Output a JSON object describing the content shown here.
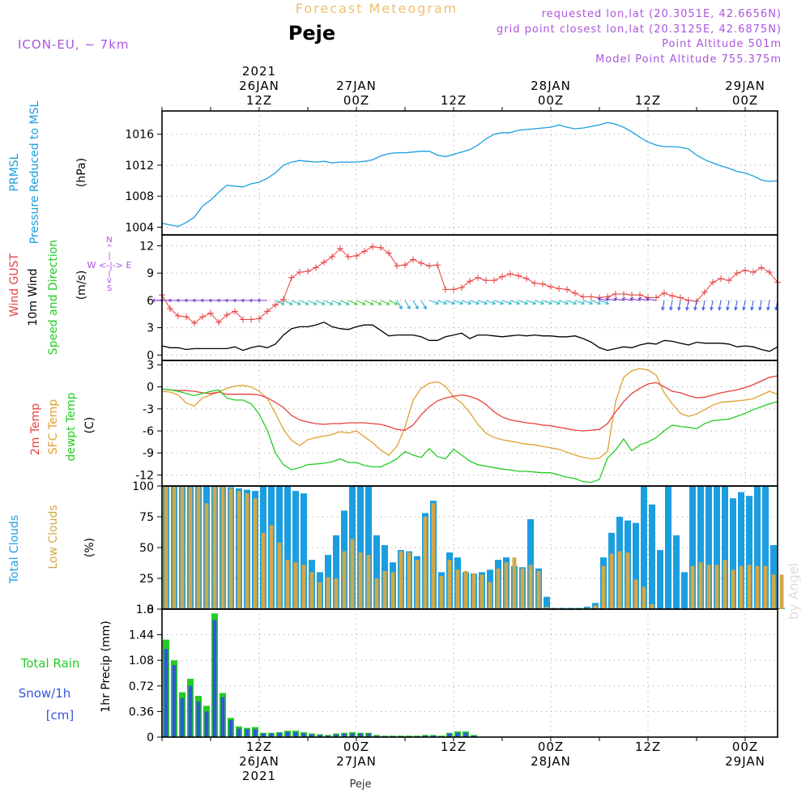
{
  "header": {
    "title": "Forecast Meteogram",
    "place": "Peje",
    "model": "ICON-EU, ~ 7km",
    "requested": "requested lon,lat (20.3051E, 42.6656N)",
    "grid_point": "grid point closest lon,lat (20.3125E, 42.6875N)",
    "point_altitude": "Point Altitude 501m",
    "model_altitude": "Model Point Altitude 755.375m",
    "watermark": "by Angel",
    "footer_place": "Peje"
  },
  "colors": {
    "pressure": "#1a9ee0",
    "gust": "#e84040",
    "wind": "#000000",
    "t2m": "#e84040",
    "sfc": "#e0a030",
    "dewpt": "#22cc22",
    "total_cloud": "#1a9ee0",
    "low_cloud": "#d0a848",
    "rain": "#22cc22",
    "snow": "#3355dd",
    "title": "#f0c070",
    "info": "#aa55dd"
  },
  "time_axis": {
    "top_labels": [
      {
        "t": 12,
        "lines": [
          "2021",
          "26JAN",
          "12Z"
        ]
      },
      {
        "t": 24,
        "lines": [
          "27JAN",
          "00Z"
        ]
      },
      {
        "t": 36,
        "lines": [
          "12Z"
        ]
      },
      {
        "t": 48,
        "lines": [
          "28JAN",
          "00Z"
        ]
      },
      {
        "t": 60,
        "lines": [
          "12Z"
        ]
      },
      {
        "t": 72,
        "lines": [
          "29JAN",
          "00Z"
        ]
      }
    ],
    "bottom_labels": [
      {
        "t": 12,
        "lines": [
          "12Z",
          "26JAN",
          "2021"
        ]
      },
      {
        "t": 24,
        "lines": [
          "00Z",
          "27JAN"
        ]
      },
      {
        "t": 36,
        "lines": [
          "12Z"
        ]
      },
      {
        "t": 48,
        "lines": [
          "00Z",
          "28JAN"
        ]
      },
      {
        "t": 60,
        "lines": [
          "12Z"
        ]
      },
      {
        "t": 72,
        "lines": [
          "00Z",
          "29JAN"
        ]
      }
    ]
  },
  "chart_data": [
    {
      "type": "line",
      "name": "pressure",
      "ylabels": [
        "PRMSL",
        "Pressure Reduced to MSL",
        "(hPa)"
      ],
      "ylim": [
        1003,
        1019
      ],
      "yticks": [
        1004,
        1008,
        1012,
        1016
      ],
      "x": [
        0,
        1,
        2,
        3,
        4,
        5,
        6,
        7,
        8,
        9,
        10,
        11,
        12,
        13,
        14,
        15,
        16,
        17,
        18,
        19,
        20,
        21,
        22,
        23,
        24,
        25,
        26,
        27,
        28,
        29,
        30,
        31,
        32,
        33,
        34,
        35,
        36,
        37,
        38,
        39,
        40,
        41,
        42,
        43,
        44,
        45,
        46,
        47,
        48,
        49,
        50,
        51,
        52,
        53,
        54,
        55,
        56,
        57,
        58,
        59,
        60,
        61,
        62,
        63,
        64,
        65,
        66,
        67,
        68,
        69,
        70,
        71,
        72,
        73,
        74,
        75,
        76
      ],
      "values": [
        1004.5,
        1004.3,
        1004.1,
        1004.6,
        1005.3,
        1006.7,
        1007.5,
        1008.5,
        1009.4,
        1009.3,
        1009.2,
        1009.6,
        1009.8,
        1010.3,
        1011.0,
        1012.0,
        1012.4,
        1012.6,
        1012.5,
        1012.4,
        1012.5,
        1012.3,
        1012.4,
        1012.4,
        1012.4,
        1012.5,
        1012.7,
        1013.2,
        1013.5,
        1013.6,
        1013.6,
        1013.7,
        1013.8,
        1013.8,
        1013.3,
        1013.1,
        1013.4,
        1013.7,
        1014.0,
        1014.6,
        1015.4,
        1016.0,
        1016.2,
        1016.2,
        1016.5,
        1016.6,
        1016.7,
        1016.8,
        1016.9,
        1017.2,
        1016.9,
        1016.7,
        1016.8,
        1017.0,
        1017.2,
        1017.5,
        1017.3,
        1016.9,
        1016.3,
        1015.6,
        1015.0,
        1014.6,
        1014.4,
        1014.4,
        1014.3,
        1014.1,
        1013.3,
        1012.7,
        1012.3,
        1011.9,
        1011.6,
        1011.2,
        1011.0,
        1010.6,
        1010.1,
        1009.9,
        1010.0
      ]
    },
    {
      "type": "line",
      "name": "wind",
      "ylabels": [
        "Wind GUST",
        "10m Wind",
        "Speed and Direction",
        "(m/s)"
      ],
      "compass": [
        "N",
        "^",
        "|",
        "W <-|-> E",
        "|",
        "v",
        "S"
      ],
      "ylim": [
        -0.6,
        13.2
      ],
      "yticks": [
        0,
        3,
        6,
        9,
        12
      ],
      "x": [
        0,
        1,
        2,
        3,
        4,
        5,
        6,
        7,
        8,
        9,
        10,
        11,
        12,
        13,
        14,
        15,
        16,
        17,
        18,
        19,
        20,
        21,
        22,
        23,
        24,
        25,
        26,
        27,
        28,
        29,
        30,
        31,
        32,
        33,
        34,
        35,
        36,
        37,
        38,
        39,
        40,
        41,
        42,
        43,
        44,
        45,
        46,
        47,
        48,
        49,
        50,
        51,
        52,
        53,
        54,
        55,
        56,
        57,
        58,
        59,
        60,
        61,
        62,
        63,
        64,
        65,
        66,
        67,
        68,
        69,
        70,
        71,
        72,
        73,
        74,
        75,
        76
      ],
      "gust": [
        6.6,
        5.1,
        4.3,
        4.2,
        3.5,
        4.2,
        4.6,
        3.6,
        4.4,
        4.8,
        3.9,
        3.9,
        4.0,
        4.8,
        5.5,
        6.1,
        8.5,
        9.1,
        9.2,
        9.6,
        10.2,
        10.8,
        11.7,
        10.8,
        10.9,
        11.4,
        11.9,
        11.8,
        11.2,
        9.8,
        9.9,
        10.5,
        10.1,
        9.8,
        9.9,
        7.2,
        7.2,
        7.4,
        8.1,
        8.5,
        8.2,
        8.2,
        8.6,
        8.9,
        8.7,
        8.4,
        7.9,
        7.8,
        7.5,
        7.3,
        7.2,
        6.8,
        6.4,
        6.4,
        6.3,
        6.4,
        6.7,
        6.7,
        6.6,
        6.6,
        6.3,
        6.3,
        6.8,
        6.5,
        6.3,
        6.0,
        5.9,
        6.9,
        8.0,
        8.4,
        8.2,
        9.0,
        9.3,
        9.1,
        9.6,
        9.1,
        8.0
      ],
      "speed": [
        1.0,
        0.8,
        0.8,
        0.6,
        0.7,
        0.7,
        0.7,
        0.7,
        0.7,
        0.9,
        0.5,
        0.8,
        1.0,
        0.8,
        1.2,
        2.2,
        2.9,
        3.1,
        3.1,
        3.3,
        3.6,
        3.1,
        2.9,
        2.8,
        3.1,
        3.3,
        3.3,
        2.7,
        2.1,
        2.2,
        2.2,
        2.2,
        2.0,
        1.6,
        1.6,
        2.0,
        2.2,
        2.4,
        1.8,
        2.2,
        2.2,
        2.1,
        2.0,
        2.1,
        2.2,
        2.1,
        2.2,
        2.1,
        2.1,
        2.0,
        2.0,
        2.1,
        1.8,
        1.4,
        0.8,
        0.5,
        0.7,
        0.9,
        0.8,
        1.1,
        1.3,
        1.2,
        1.6,
        1.5,
        1.3,
        1.1,
        1.4,
        1.3,
        1.3,
        1.3,
        1.2,
        0.9,
        1.0,
        0.9,
        0.6,
        0.4,
        0.9
      ]
    },
    {
      "type": "line",
      "name": "temperature",
      "ylabels": [
        "2m Temp",
        "SFC Temp",
        "dewpt Temp",
        "(C)"
      ],
      "ylim": [
        -13.5,
        3.6
      ],
      "yticks": [
        3,
        0,
        -3,
        -6,
        -9,
        -12
      ],
      "x": [
        0,
        1,
        2,
        3,
        4,
        5,
        6,
        7,
        8,
        9,
        10,
        11,
        12,
        13,
        14,
        15,
        16,
        17,
        18,
        19,
        20,
        21,
        22,
        23,
        24,
        25,
        26,
        27,
        28,
        29,
        30,
        31,
        32,
        33,
        34,
        35,
        36,
        37,
        38,
        39,
        40,
        41,
        42,
        43,
        44,
        45,
        46,
        47,
        48,
        49,
        50,
        51,
        52,
        53,
        54,
        55,
        56,
        57,
        58,
        59,
        60,
        61,
        62,
        63,
        64,
        65,
        66,
        67,
        68,
        69,
        70,
        71,
        72,
        73,
        74,
        75,
        76
      ],
      "t2m": [
        -0.3,
        -0.4,
        -0.5,
        -0.5,
        -0.6,
        -0.8,
        -0.9,
        -0.7,
        -1.0,
        -1.0,
        -1.0,
        -1.0,
        -1.1,
        -1.5,
        -2.1,
        -2.8,
        -3.9,
        -4.5,
        -4.8,
        -5.0,
        -5.1,
        -5.0,
        -5.0,
        -4.9,
        -4.9,
        -4.9,
        -5.0,
        -5.1,
        -5.4,
        -5.8,
        -5.9,
        -5.2,
        -3.8,
        -2.7,
        -1.9,
        -1.5,
        -1.3,
        -1.1,
        -1.3,
        -1.7,
        -2.4,
        -3.4,
        -4.1,
        -4.5,
        -4.7,
        -4.9,
        -5.0,
        -5.2,
        -5.3,
        -5.5,
        -5.7,
        -5.9,
        -6.0,
        -5.9,
        -5.8,
        -5.0,
        -3.4,
        -2.0,
        -0.9,
        -0.2,
        0.4,
        0.6,
        0.0,
        -0.6,
        -0.8,
        -1.2,
        -1.5,
        -1.4,
        -1.1,
        -0.8,
        -0.6,
        -0.4,
        -0.1,
        0.3,
        0.8,
        1.3,
        1.5
      ],
      "sfc": [
        -0.6,
        -0.7,
        -1.1,
        -2.2,
        -2.6,
        -1.5,
        -1.1,
        -0.7,
        -0.2,
        0.1,
        0.2,
        0.0,
        -0.6,
        -1.6,
        -3.6,
        -5.8,
        -7.3,
        -8.0,
        -7.2,
        -6.9,
        -6.7,
        -6.5,
        -6.1,
        -6.3,
        -6.0,
        -6.8,
        -7.6,
        -8.6,
        -9.3,
        -8.1,
        -5.5,
        -1.8,
        -0.2,
        0.5,
        0.7,
        0.1,
        -1.4,
        -2.2,
        -3.5,
        -5.1,
        -6.3,
        -6.9,
        -7.2,
        -7.4,
        -7.6,
        -7.8,
        -7.9,
        -8.1,
        -8.3,
        -8.5,
        -8.9,
        -9.3,
        -9.6,
        -9.8,
        -9.7,
        -8.8,
        -2.0,
        1.3,
        2.2,
        2.5,
        2.3,
        1.6,
        -0.8,
        -2.3,
        -3.6,
        -4.0,
        -3.7,
        -3.1,
        -2.5,
        -2.1,
        -2.0,
        -1.9,
        -1.8,
        -1.6,
        -1.1,
        -0.6,
        -1.0
      ],
      "dewpt": [
        -0.3,
        -0.4,
        -0.6,
        -0.9,
        -1.2,
        -0.9,
        -0.6,
        -0.4,
        -1.5,
        -1.8,
        -1.8,
        -2.3,
        -3.7,
        -5.9,
        -9.0,
        -10.6,
        -11.3,
        -11.0,
        -10.6,
        -10.5,
        -10.4,
        -10.2,
        -9.8,
        -10.3,
        -10.3,
        -10.7,
        -10.9,
        -10.9,
        -10.4,
        -9.8,
        -8.8,
        -9.3,
        -9.6,
        -8.4,
        -9.5,
        -9.8,
        -8.5,
        -9.3,
        -10.1,
        -10.6,
        -10.8,
        -11.0,
        -11.2,
        -11.3,
        -11.5,
        -11.5,
        -11.6,
        -11.7,
        -11.7,
        -12.0,
        -12.3,
        -12.5,
        -12.9,
        -13.0,
        -12.6,
        -9.7,
        -8.6,
        -7.1,
        -8.7,
        -7.9,
        -7.5,
        -6.9,
        -6.0,
        -5.2,
        -5.4,
        -5.5,
        -5.7,
        -5.0,
        -4.6,
        -4.5,
        -4.4,
        -4.0,
        -3.6,
        -3.1,
        -2.7,
        -2.3,
        -2.0
      ]
    },
    {
      "type": "bar",
      "name": "clouds",
      "ylabels": [
        "Total Clouds",
        "Low Clouds",
        "(%)"
      ],
      "ylim": [
        0,
        100
      ],
      "yticks": [
        0,
        25,
        50,
        75,
        100
      ],
      "x": [
        0,
        1,
        2,
        3,
        4,
        5,
        6,
        7,
        8,
        9,
        10,
        11,
        12,
        13,
        14,
        15,
        16,
        17,
        18,
        19,
        20,
        21,
        22,
        23,
        24,
        25,
        26,
        27,
        28,
        29,
        30,
        31,
        32,
        33,
        34,
        35,
        36,
        37,
        38,
        39,
        40,
        41,
        42,
        43,
        44,
        45,
        46,
        47,
        48,
        49,
        50,
        51,
        52,
        53,
        54,
        55,
        56,
        57,
        58,
        59,
        60,
        61,
        62,
        63,
        64,
        65,
        66,
        67,
        68,
        69,
        70,
        71,
        72,
        73,
        74,
        75,
        76
      ],
      "total": [
        100,
        100,
        100,
        100,
        100,
        100,
        100,
        100,
        99,
        98,
        97,
        96,
        100,
        100,
        100,
        100,
        96,
        94,
        40,
        30,
        44,
        60,
        80,
        100,
        100,
        100,
        60,
        52,
        38,
        48,
        47,
        43,
        78,
        88,
        30,
        46,
        42,
        30,
        29,
        30,
        32,
        40,
        42,
        35,
        34,
        73,
        33,
        10,
        1,
        1,
        1,
        1,
        2,
        5,
        42,
        62,
        75,
        72,
        70,
        100,
        85,
        48,
        100,
        60,
        30,
        100,
        100,
        100,
        100,
        100,
        90,
        95,
        92,
        100,
        100,
        52,
        1
      ],
      "low": [
        100,
        100,
        100,
        99,
        100,
        86,
        100,
        100,
        98,
        96,
        94,
        90,
        62,
        68,
        54,
        40,
        38,
        36,
        30,
        22,
        26,
        25,
        47,
        57,
        46,
        44,
        25,
        31,
        30,
        47,
        46,
        40,
        75,
        86,
        27,
        40,
        32,
        31,
        29,
        28,
        22,
        33,
        38,
        42,
        33,
        36,
        31,
        2,
        0,
        0,
        0,
        0,
        1,
        3,
        35,
        45,
        47,
        46,
        24,
        18,
        4,
        0,
        0,
        0,
        0,
        35,
        38,
        36,
        36,
        40,
        32,
        35,
        36,
        35,
        35,
        28,
        28
      ]
    },
    {
      "type": "bar",
      "name": "precipitation",
      "ylabels": [
        "Total Rain",
        "Snow/1h",
        "[cm]",
        "1hr Precip (mm)"
      ],
      "ylim": [
        0,
        1.8
      ],
      "yticks": [
        0,
        0.36,
        0.72,
        1.08,
        1.44,
        1.8
      ],
      "ytick_labels": [
        "0",
        "0.36",
        "0.72",
        "1.08",
        "1.44",
        "1.8"
      ],
      "x": [
        0,
        1,
        2,
        3,
        4,
        5,
        6,
        7,
        8,
        9,
        10,
        11,
        12,
        13,
        14,
        15,
        16,
        17,
        18,
        19,
        20,
        21,
        22,
        23,
        24,
        25,
        26,
        27,
        28,
        29,
        30,
        31,
        32,
        33,
        34,
        35,
        36,
        37,
        38,
        39,
        40,
        41,
        42,
        43,
        44,
        45,
        46,
        47,
        48,
        49,
        50,
        51,
        52,
        53,
        54,
        55,
        56,
        57,
        58,
        59,
        60,
        61,
        62,
        63,
        64,
        65,
        66,
        67,
        68,
        69,
        70,
        71,
        72,
        73,
        74,
        75,
        76
      ],
      "rain": [
        1.37,
        1.08,
        0.63,
        0.82,
        0.58,
        0.44,
        1.74,
        0.62,
        0.27,
        0.15,
        0.13,
        0.14,
        0.06,
        0.06,
        0.07,
        0.09,
        0.09,
        0.07,
        0.05,
        0.04,
        0.03,
        0.05,
        0.06,
        0.07,
        0.06,
        0.06,
        0.03,
        0.02,
        0.02,
        0.02,
        0.02,
        0.02,
        0.03,
        0.03,
        0.02,
        0.06,
        0.08,
        0.08,
        0.03,
        0,
        0,
        0,
        0,
        0,
        0,
        0,
        0,
        0,
        0,
        0,
        0,
        0,
        0,
        0,
        0,
        0,
        0,
        0,
        0,
        0,
        0,
        0,
        0,
        0,
        0,
        0,
        0,
        0,
        0,
        0,
        0,
        0,
        0,
        0,
        0,
        0,
        0
      ],
      "snow": [
        1.24,
        1.01,
        0.55,
        0.72,
        0.5,
        0.36,
        1.65,
        0.56,
        0.24,
        0.12,
        0.11,
        0.11,
        0.05,
        0.05,
        0.06,
        0.07,
        0.07,
        0.05,
        0.04,
        0.03,
        0.02,
        0.04,
        0.05,
        0.05,
        0.05,
        0.05,
        0.02,
        0.01,
        0.01,
        0.01,
        0.01,
        0.01,
        0.02,
        0.02,
        0.01,
        0.05,
        0.06,
        0.06,
        0.02,
        0,
        0,
        0,
        0,
        0,
        0,
        0,
        0,
        0,
        0,
        0,
        0,
        0,
        0,
        0,
        0,
        0,
        0,
        0,
        0,
        0,
        0,
        0,
        0,
        0,
        0,
        0,
        0,
        0,
        0,
        0,
        0,
        0,
        0,
        0,
        0,
        0,
        0
      ]
    }
  ]
}
